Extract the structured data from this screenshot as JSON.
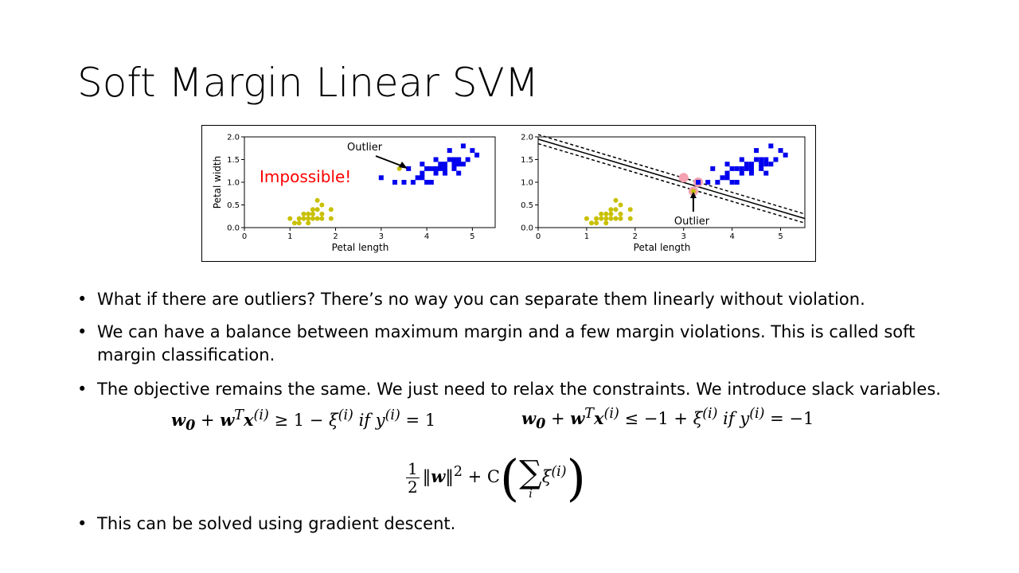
{
  "slide": {
    "title": "Soft Margin Linear SVM"
  },
  "figure": {
    "left_panel": {
      "ylabel": "Petal width",
      "xlabel": "Petal length",
      "annotation_outlier": "Outlier",
      "annotation_impossible": "Impossible!",
      "xticks": [
        "0",
        "1",
        "2",
        "3",
        "4",
        "5"
      ],
      "yticks": [
        "0.0",
        "0.5",
        "1.0",
        "1.5",
        "2.0"
      ]
    },
    "right_panel": {
      "xlabel": "Petal length",
      "annotation_outlier": "Outlier",
      "xticks": [
        "0",
        "1",
        "2",
        "3",
        "4",
        "5"
      ],
      "yticks": [
        "0.0",
        "0.5",
        "1.0",
        "1.5",
        "2.0"
      ]
    },
    "colors": {
      "class_a": "#c8c000",
      "class_b": "#0000ee",
      "impossible": "#ff0000",
      "support_vector": "#f4a0b0"
    }
  },
  "chart_data": [
    {
      "type": "scatter",
      "xlabel": "Petal length",
      "ylabel": "Petal width",
      "xlim": [
        0,
        5.5
      ],
      "ylim": [
        0,
        2.0
      ],
      "series": [
        {
          "marker": "circle",
          "color": "#c8c000",
          "points": [
            [
              1.0,
              0.2
            ],
            [
              1.1,
              0.1
            ],
            [
              1.2,
              0.2
            ],
            [
              1.3,
              0.2
            ],
            [
              1.3,
              0.3
            ],
            [
              1.4,
              0.1
            ],
            [
              1.4,
              0.2
            ],
            [
              1.4,
              0.3
            ],
            [
              1.5,
              0.2
            ],
            [
              1.5,
              0.3
            ],
            [
              1.5,
              0.4
            ],
            [
              1.6,
              0.2
            ],
            [
              1.6,
              0.4
            ],
            [
              1.6,
              0.6
            ],
            [
              1.7,
              0.2
            ],
            [
              1.7,
              0.3
            ],
            [
              1.7,
              0.5
            ],
            [
              1.9,
              0.2
            ],
            [
              1.9,
              0.4
            ],
            [
              1.2,
              0.1
            ]
          ]
        },
        {
          "marker": "square",
          "color": "#0000ee",
          "points": [
            [
              3.0,
              1.1
            ],
            [
              3.3,
              1.0
            ],
            [
              3.5,
              1.0
            ],
            [
              3.6,
              1.3
            ],
            [
              3.7,
              1.0
            ],
            [
              3.8,
              1.1
            ],
            [
              3.9,
              1.1
            ],
            [
              3.9,
              1.2
            ],
            [
              3.9,
              1.4
            ],
            [
              4.0,
              1.0
            ],
            [
              4.0,
              1.3
            ],
            [
              4.1,
              1.0
            ],
            [
              4.1,
              1.3
            ],
            [
              4.2,
              1.2
            ],
            [
              4.2,
              1.3
            ],
            [
              4.3,
              1.3
            ],
            [
              4.4,
              1.2
            ],
            [
              4.4,
              1.3
            ],
            [
              4.4,
              1.4
            ],
            [
              4.5,
              1.5
            ],
            [
              4.6,
              1.3
            ],
            [
              4.6,
              1.4
            ],
            [
              4.6,
              1.5
            ],
            [
              4.7,
              1.2
            ],
            [
              4.7,
              1.4
            ],
            [
              4.7,
              1.5
            ],
            [
              4.8,
              1.4
            ],
            [
              4.8,
              1.8
            ],
            [
              4.9,
              1.5
            ],
            [
              5.0,
              1.7
            ],
            [
              5.1,
              1.6
            ],
            [
              4.5,
              1.7
            ],
            [
              4.2,
              1.5
            ],
            [
              4.3,
              1.4
            ]
          ]
        },
        {
          "marker": "circle",
          "color": "#c8c000",
          "points": [
            [
              3.4,
              1.3
            ]
          ]
        }
      ]
    },
    {
      "type": "scatter",
      "xlabel": "Petal length",
      "xlim": [
        0,
        5.5
      ],
      "ylim": [
        0,
        2.0
      ],
      "series": [
        {
          "marker": "circle",
          "color": "#c8c000",
          "points": [
            [
              1.0,
              0.2
            ],
            [
              1.1,
              0.1
            ],
            [
              1.2,
              0.2
            ],
            [
              1.3,
              0.2
            ],
            [
              1.3,
              0.3
            ],
            [
              1.4,
              0.1
            ],
            [
              1.4,
              0.2
            ],
            [
              1.4,
              0.3
            ],
            [
              1.5,
              0.2
            ],
            [
              1.5,
              0.3
            ],
            [
              1.5,
              0.4
            ],
            [
              1.6,
              0.2
            ],
            [
              1.6,
              0.4
            ],
            [
              1.6,
              0.6
            ],
            [
              1.7,
              0.2
            ],
            [
              1.7,
              0.3
            ],
            [
              1.7,
              0.5
            ],
            [
              1.9,
              0.2
            ],
            [
              1.9,
              0.4
            ],
            [
              1.2,
              0.1
            ]
          ]
        },
        {
          "marker": "square",
          "color": "#0000ee",
          "points": [
            [
              3.3,
              1.0
            ],
            [
              3.5,
              1.0
            ],
            [
              3.6,
              1.3
            ],
            [
              3.7,
              1.0
            ],
            [
              3.8,
              1.1
            ],
            [
              3.9,
              1.1
            ],
            [
              3.9,
              1.2
            ],
            [
              3.9,
              1.4
            ],
            [
              4.0,
              1.0
            ],
            [
              4.0,
              1.3
            ],
            [
              4.1,
              1.0
            ],
            [
              4.1,
              1.3
            ],
            [
              4.2,
              1.2
            ],
            [
              4.2,
              1.3
            ],
            [
              4.3,
              1.3
            ],
            [
              4.4,
              1.2
            ],
            [
              4.4,
              1.3
            ],
            [
              4.4,
              1.4
            ],
            [
              4.5,
              1.5
            ],
            [
              4.6,
              1.3
            ],
            [
              4.6,
              1.4
            ],
            [
              4.6,
              1.5
            ],
            [
              4.7,
              1.2
            ],
            [
              4.7,
              1.4
            ],
            [
              4.7,
              1.5
            ],
            [
              4.8,
              1.4
            ],
            [
              4.8,
              1.8
            ],
            [
              4.9,
              1.5
            ],
            [
              5.0,
              1.7
            ],
            [
              5.1,
              1.6
            ],
            [
              4.5,
              1.7
            ],
            [
              4.2,
              1.5
            ],
            [
              4.3,
              1.4
            ]
          ]
        },
        {
          "marker": "circle",
          "color": "#c8c000",
          "points": [
            [
              3.2,
              0.8
            ]
          ]
        }
      ],
      "support_vectors": [
        [
          3.0,
          1.1
        ],
        [
          3.3,
          1.0
        ],
        [
          3.2,
          0.8
        ]
      ],
      "decision_boundary": {
        "x": [
          0,
          5.5
        ],
        "y": [
          1.95,
          0.2
        ]
      },
      "margin_upper": {
        "x": [
          0,
          5.5
        ],
        "y": [
          2.05,
          0.3
        ]
      },
      "margin_lower": {
        "x": [
          0,
          5.5
        ],
        "y": [
          1.85,
          0.1
        ]
      }
    }
  ],
  "bullets": [
    {
      "text": "What if there are outliers? There’s no way you can separate them linearly without violation."
    },
    {
      "text": "We can have a balance between maximum margin and a few margin violations. This  is called soft margin classification."
    },
    {
      "text": "The objective remains the same. We just need to relax the constraints. We introduce slack variables."
    },
    {
      "text": "This can be solved using gradient descent."
    }
  ],
  "equations": {
    "constraint_pos": {
      "w0": "w",
      "w0sub": "0",
      "plus1": " + ",
      "w": "w",
      "T": "T",
      "x": "x",
      "isup": "(i)",
      "rel": " ≥ 1 − ",
      "xi": "ξ",
      "xisup": "(i)",
      "cond": "  if ",
      "y": "y",
      "ysup": "(i)",
      "rhs": " = 1"
    },
    "constraint_neg": {
      "w0": "w",
      "w0sub": "0",
      "plus1": " + ",
      "w": "w",
      "T": "T",
      "x": "x",
      "isup": "(i)",
      "rel": " ≤ −1 + ",
      "xi": "ξ",
      "xisup": "(i)",
      "cond": "  if ",
      "y": "y",
      "ysup": "(i)",
      "rhs": " = −1"
    },
    "objective": {
      "num": "1",
      "den": "2",
      "norm_open": "‖",
      "w": "w",
      "norm_close": "‖",
      "sq": "2",
      "plusC": " + C",
      "lparen": "(",
      "sum": "∑",
      "sub": "i",
      "xi": "ξ",
      "xisup": "(i)",
      "rparen": ")"
    }
  },
  "bullet_glyph": "•"
}
